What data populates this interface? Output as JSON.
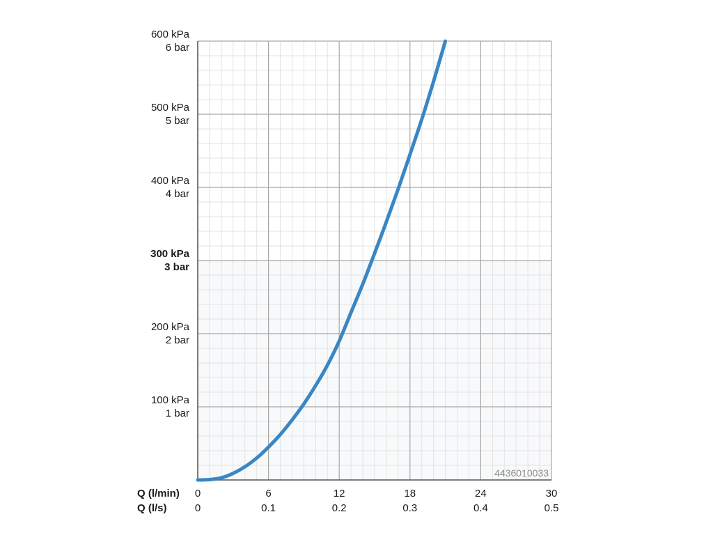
{
  "chart_data": {
    "type": "line",
    "x_axis_primary": {
      "label": "Q (l/min)",
      "range": [
        0,
        30
      ],
      "ticks": [
        0,
        6,
        12,
        18,
        24,
        30
      ],
      "tick_labels": [
        "0",
        "6",
        "12",
        "18",
        "24",
        "30"
      ]
    },
    "x_axis_secondary": {
      "label": "Q (l/s)",
      "tick_labels": [
        "0",
        "0.1",
        "0.2",
        "0.3",
        "0.4",
        "0.5"
      ]
    },
    "y_axis": {
      "range": [
        0,
        600
      ],
      "ticks": [
        100,
        200,
        300,
        400,
        500,
        600
      ],
      "tick_labels_kpa": [
        "100 kPa",
        "200 kPa",
        "300 kPa",
        "400 kPa",
        "500 kPa",
        "600 kPa"
      ],
      "tick_labels_bar": [
        "1 bar",
        "2 bar",
        "3 bar",
        "4 bar",
        "5 bar",
        "6 bar"
      ],
      "bold_tick": 300
    },
    "grid": true,
    "series": [
      {
        "color": "#3a86c4",
        "points": [
          [
            0,
            0
          ],
          [
            1,
            0.5
          ],
          [
            2,
            3
          ],
          [
            3,
            9
          ],
          [
            4,
            18
          ],
          [
            5,
            30
          ],
          [
            6,
            45
          ],
          [
            7,
            62
          ],
          [
            8,
            82
          ],
          [
            9,
            104
          ],
          [
            10,
            129
          ],
          [
            11,
            157
          ],
          [
            12,
            190
          ],
          [
            13,
            229
          ],
          [
            14,
            268
          ],
          [
            15,
            310
          ],
          [
            16,
            353
          ],
          [
            17,
            398
          ],
          [
            18,
            445
          ],
          [
            19,
            493
          ],
          [
            20,
            545
          ],
          [
            21,
            600
          ]
        ]
      }
    ]
  },
  "watermark": {
    "code": "4436010033"
  }
}
